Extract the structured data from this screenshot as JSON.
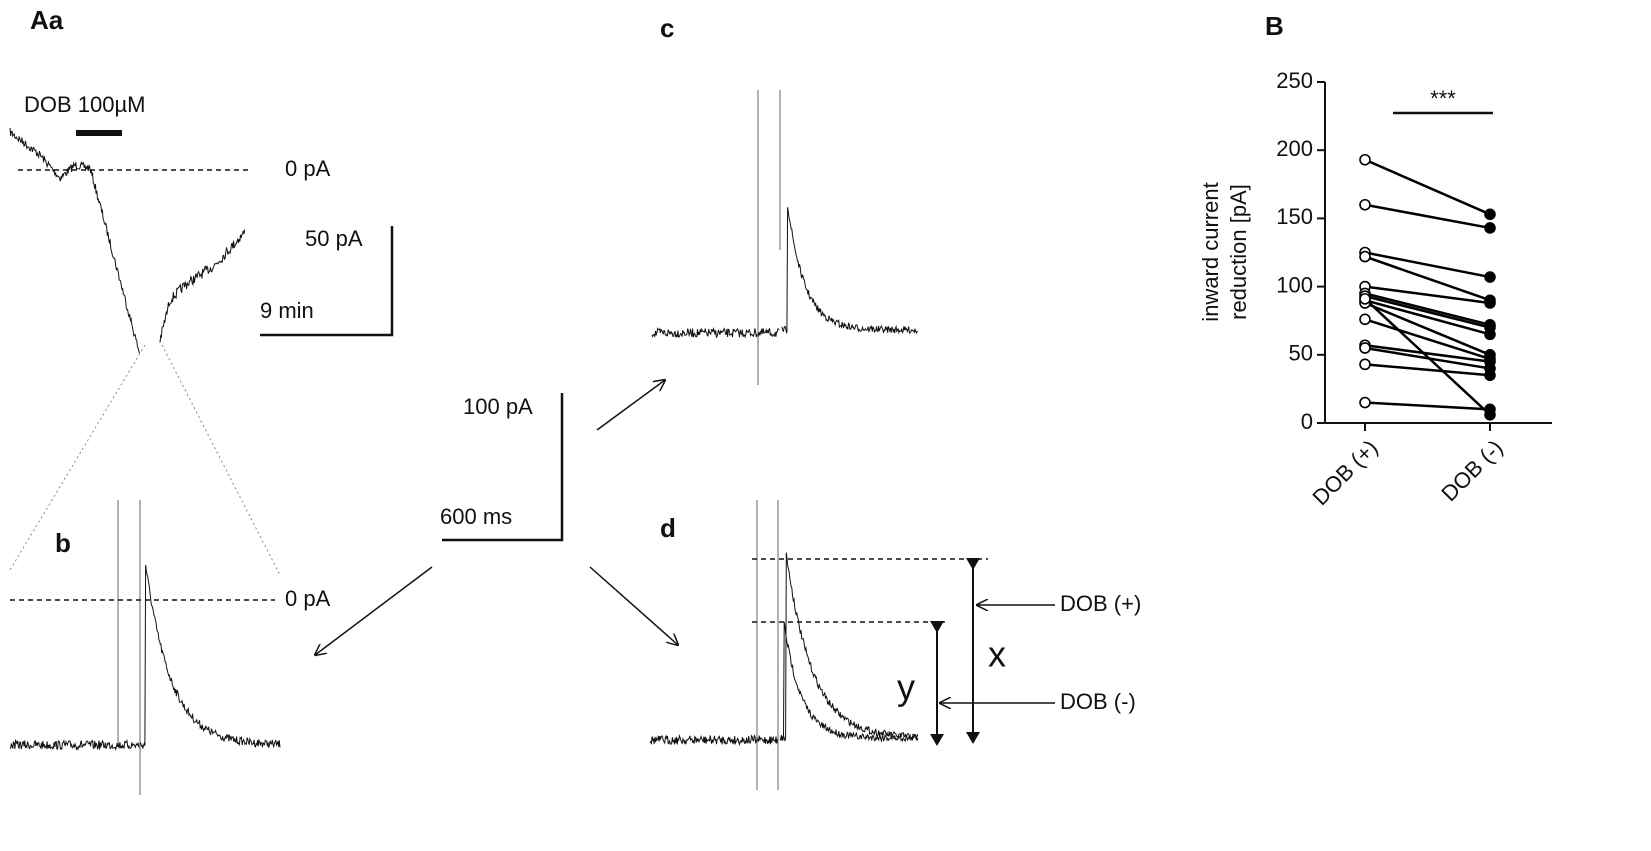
{
  "figure": {
    "panel_a": "Aa",
    "panel_b": "b",
    "panel_c": "c",
    "panel_d": "d",
    "panel_B": "B",
    "drug": "DOB 100µM",
    "zero_a": "0 pA",
    "scale_a_y": "50 pA",
    "scale_a_x": "9 min",
    "zero_b": "0 pA",
    "scale_c_y": "100 pA",
    "scale_c_x": "600 ms",
    "dob_plus": "DOB (+)",
    "dob_minus": "DOB (-)",
    "x_label": "x",
    "y_label": "y"
  },
  "chart_data": {
    "type": "paired-scatter",
    "ylabel": [
      "inward current",
      "reduction [pA]"
    ],
    "annotation": "***",
    "categories": [
      "DOB (+)",
      "DOB (-)"
    ],
    "series": [
      {
        "color": "#000000",
        "fill": "none",
        "values": [
          193,
          160,
          125,
          122,
          100,
          95,
          93,
          90,
          88,
          76,
          57,
          55,
          43,
          15,
          91
        ]
      },
      {
        "color": "#000000",
        "fill": "#000000",
        "values": [
          153,
          143,
          107,
          90,
          88,
          72,
          70,
          65,
          50,
          47,
          45,
          40,
          35,
          10,
          6
        ]
      }
    ],
    "ylim": [
      0,
      250
    ],
    "yticks": [
      0,
      50,
      100,
      150,
      200,
      250
    ]
  }
}
